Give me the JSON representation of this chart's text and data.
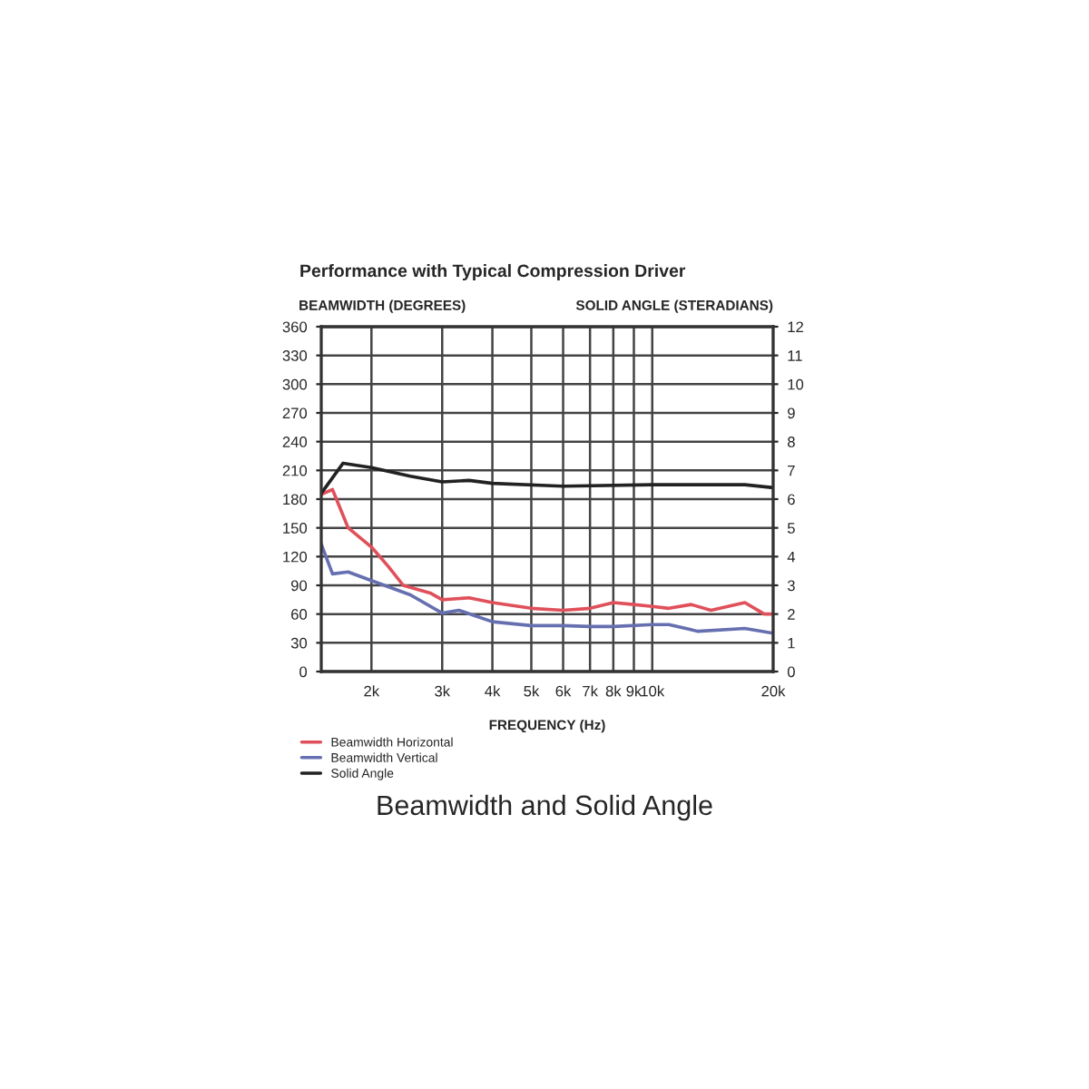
{
  "chart_data": {
    "type": "line",
    "title": "Performance with Typical Compression Driver",
    "xlabel": "FREQUENCY (Hz)",
    "ylabel": "BEAMWIDTH (DEGREES)",
    "y2label": "SOLID ANGLE (STERADIANS)",
    "annotations": [
      "Beamwidth and Solid Angle"
    ],
    "log": "x",
    "grid": true,
    "legend": "bottom left",
    "xlim": [
      1500,
      20000
    ],
    "xticks": [
      {
        "value": 2000,
        "label": "2k"
      },
      {
        "value": 3000,
        "label": "3k"
      },
      {
        "value": 4000,
        "label": "4k"
      },
      {
        "value": 5000,
        "label": "5k"
      },
      {
        "value": 6000,
        "label": "6k"
      },
      {
        "value": 7000,
        "label": "7k"
      },
      {
        "value": 8000,
        "label": "8k"
      },
      {
        "value": 9000,
        "label": "9k"
      },
      {
        "value": 10000,
        "label": "10k"
      },
      {
        "value": 20000,
        "label": "20k"
      }
    ],
    "ylim": [
      0,
      360
    ],
    "yticks": [
      0,
      30,
      60,
      90,
      120,
      150,
      180,
      210,
      240,
      270,
      300,
      330,
      360
    ],
    "y2lim": [
      0,
      12
    ],
    "y2ticks": [
      0,
      1,
      2,
      3,
      4,
      5,
      6,
      7,
      8,
      9,
      10,
      11,
      12
    ],
    "series": [
      {
        "name": "Beamwidth Horizontal",
        "color": "#e0505a",
        "x": [
          1500,
          1600,
          1750,
          2000,
          2200,
          2400,
          2800,
          3000,
          3500,
          4000,
          5000,
          6000,
          7000,
          8000,
          9000,
          10000,
          11000,
          12500,
          14000,
          17000,
          19000,
          20000
        ],
        "values": [
          185,
          190,
          150,
          130,
          110,
          90,
          82,
          75,
          77,
          72,
          66,
          64,
          66,
          72,
          70,
          68,
          66,
          70,
          64,
          72,
          60,
          60
        ]
      },
      {
        "name": "Beamwidth Vertical",
        "color": "#6670b0",
        "x": [
          1500,
          1600,
          1750,
          2000,
          2500,
          3000,
          3300,
          4000,
          5000,
          6000,
          7000,
          8000,
          10000,
          11000,
          13000,
          17000,
          20000
        ],
        "values": [
          133,
          102,
          104,
          95,
          80,
          61,
          64,
          52,
          48,
          48,
          47,
          47,
          49,
          49,
          42,
          45,
          40
        ]
      },
      {
        "name": "Solid Angle",
        "color": "#222222",
        "axis": "y2",
        "x": [
          1500,
          1700,
          2000,
          2500,
          3000,
          3500,
          4000,
          6000,
          10000,
          17000,
          20000
        ],
        "values": [
          6.2,
          7.25,
          7.1,
          6.8,
          6.6,
          6.65,
          6.55,
          6.45,
          6.5,
          6.5,
          6.4
        ]
      }
    ]
  }
}
